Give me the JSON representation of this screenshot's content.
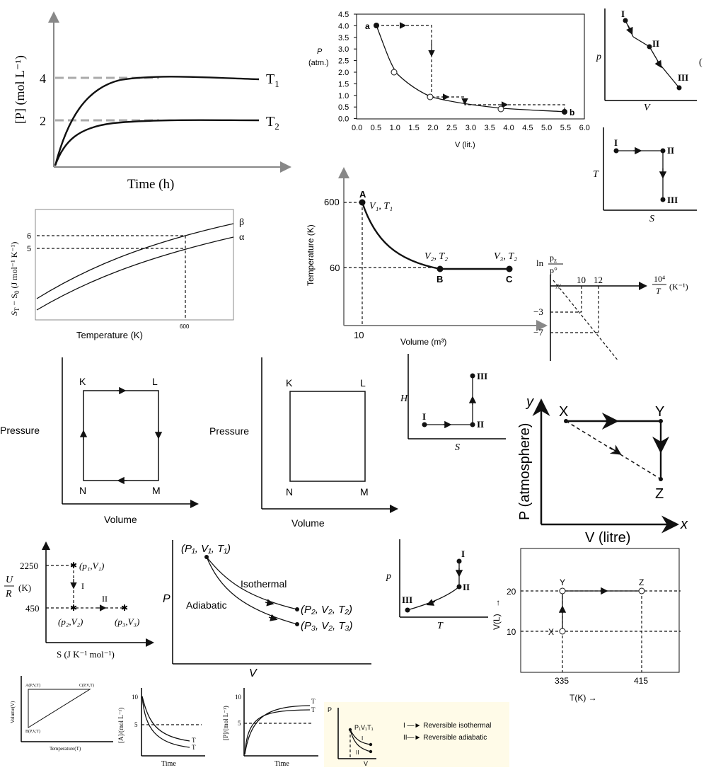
{
  "d1": {
    "ylabel": "[P] (mol L⁻¹)",
    "xlabel": "Time (h)",
    "tick4": "4",
    "tick2": "2",
    "t1": "T",
    "t1sub": "1",
    "t2": "T",
    "t2sub": "2"
  },
  "d2": {
    "ylabel_p": "P",
    "ylabel_unit": "(atm.)",
    "xlabel": "V (lit.)",
    "yticks": [
      "4.5",
      "4.0",
      "3.5",
      "3.0",
      "2.5",
      "2.0",
      "1.5",
      "1.0",
      "0.5",
      "0.0"
    ],
    "xticks": [
      "0.0",
      "0.5",
      "1.0",
      "1.5",
      "2.0",
      "2.5",
      "3.0",
      "3.5",
      "4.0",
      "4.5",
      "5.0",
      "5.5",
      "6.0"
    ],
    "pa": "a",
    "pb": "b"
  },
  "d3": {
    "ylabel": "p",
    "xlabel": "V",
    "s1": "I",
    "s2": "II",
    "s3": "III",
    "edge": "("
  },
  "d4": {
    "ylabel": "T",
    "xlabel": "S",
    "s1": "I",
    "s2": "II",
    "s3": "III"
  },
  "d5": {
    "ylabel": "S",
    "ylabel_sub": "T",
    "ylabel_rest": " − S",
    "ylabel_sub2": "0",
    "ylabel_unit": " (J mol⁻¹ K⁻¹)",
    "xlabel": "Temperature (K)",
    "tick6": "6",
    "tick5": "5",
    "tick600": "600",
    "beta": "β",
    "alpha": "α"
  },
  "d6": {
    "ylabel": "Temperature (K)",
    "xlabel": "Volume (m³)",
    "t600": "600",
    "t60": "60",
    "v10": "10",
    "A": "A",
    "B": "B",
    "C": "C",
    "labA": "V₁, T₁",
    "labB": "V₂, T₂",
    "labC": "V₃, T₂"
  },
  "d7": {
    "ylabel_num": "p",
    "ylabel_num_sub": "z",
    "ylabel_den": "p°",
    "ln": "ln",
    "xnum": "10⁴",
    "xden": "T",
    "xunit": "(K⁻¹)",
    "t10": "10",
    "t12": "12",
    "tm3": "−3",
    "tm7": "−7"
  },
  "d8": {
    "ylabel": "Pressure",
    "xlabel": "Volume",
    "K": "K",
    "L": "L",
    "M": "M",
    "N": "N"
  },
  "d9": {
    "ylabel": "Pressure",
    "xlabel": "Volume",
    "K": "K",
    "L": "L",
    "M": "M",
    "N": "N"
  },
  "d10": {
    "ylabel": "H",
    "xlabel": "S",
    "s1": "I",
    "s2": "II",
    "s3": "III"
  },
  "d11": {
    "ylabel": "P (atmosphere)",
    "xlabel": "V (litre)",
    "yaxis": "y",
    "xaxis": "x",
    "X": "X",
    "Y": "Y",
    "Z": "Z"
  },
  "d12": {
    "ylabel_u": "U",
    "ylabel_r": "R",
    "ylabel_k": "(K)",
    "xlabel": "S (J K⁻¹ mol⁻¹)",
    "t2250": "2250",
    "t450": "450",
    "p1": "(p₁,V₁)",
    "p2": "(p₂,V₂)",
    "p3": "(p₃,V₃)",
    "s1": "I",
    "s2": "II"
  },
  "d13": {
    "ylabel": "P",
    "xlabel": "V",
    "start": "(P₁, V₁, T₁)",
    "end2": "(P₂, V₂, T₂)",
    "end3": "(P₃, V₂, T₃)",
    "iso": "Isothermal",
    "adi": "Adiabatic"
  },
  "d14": {
    "ylabel": "p",
    "xlabel": "T",
    "s1": "I",
    "s2": "II",
    "s3": "III"
  },
  "d15": {
    "ylabel": "V(L)",
    "arrow": "→",
    "xlabel": "T(K)  →",
    "t20": "20",
    "t10": "10",
    "t335": "335",
    "t415": "415",
    "X": "X",
    "Y": "Y",
    "Z": "Z"
  },
  "d16": {
    "ylabel": "Volume(V)",
    "xlabel": "Temperature(T)",
    "A": "A(P,V,T)",
    "B": "B(P,V,T)",
    "C": "C(P,V,T)"
  },
  "d17": {
    "ylabel": "[A]/(mol L⁻¹)",
    "xlabel": "Time",
    "t10": "10",
    "t5": "5",
    "T1": "T",
    "T2": "T"
  },
  "d18": {
    "ylabel": "[P]/(mol L⁻¹)",
    "xlabel": "Time",
    "t10": "10",
    "t5": "5",
    "T1": "T",
    "T2": "T"
  },
  "d19": {
    "ylabel": "P",
    "xlabel": "V",
    "start": "P₁V₁T₁",
    "s1": "I",
    "s2": "II",
    "leg1": "I —► Reversible isothermal",
    "leg2": "II—► Reversible adiabatic"
  }
}
